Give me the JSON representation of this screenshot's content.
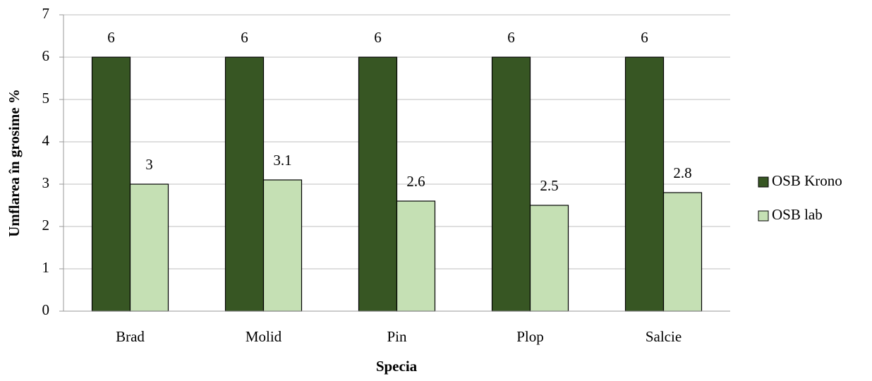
{
  "chart_data": {
    "type": "bar",
    "x_label": "Specia",
    "y_label": "Umflarea în grosime %",
    "categories": [
      "Brad",
      "Molid",
      "Pin",
      "Plop",
      "Salcie"
    ],
    "series": [
      {
        "name": "OSB Krono",
        "color": "#375623",
        "values": [
          6,
          6,
          6,
          6,
          6
        ]
      },
      {
        "name": "OSB lab",
        "color": "#c5e0b4",
        "values": [
          3,
          3.1,
          2.6,
          2.5,
          2.8
        ]
      }
    ],
    "ylim": [
      0,
      7
    ],
    "yticks": [
      0,
      1,
      2,
      3,
      4,
      5,
      6,
      7
    ],
    "grid": true,
    "legend": "right",
    "data_labels": true
  }
}
